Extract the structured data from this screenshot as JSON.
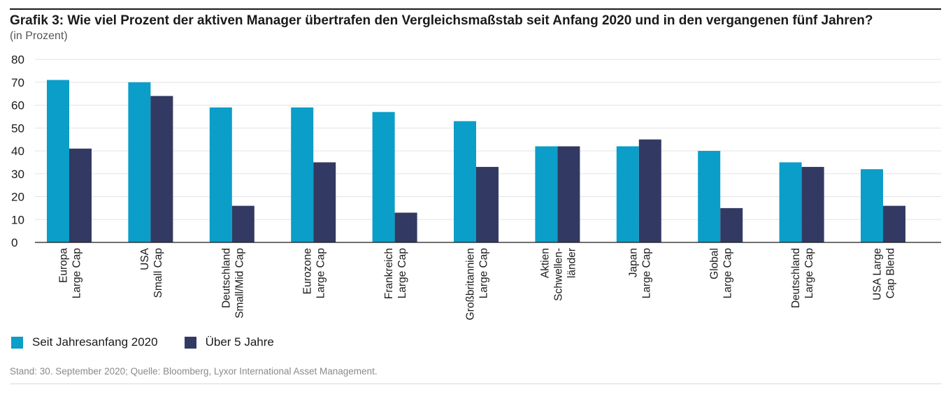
{
  "title_lead": "Grafik 3:",
  "title_text": "Wie viel Prozent der aktiven Manager übertrafen den Vergleichsmaßstab seit Anfang 2020 und in den vergangenen fünf Jahren?",
  "subtitle": "(in Prozent)",
  "footnote": "Stand: 30. September 2020; Quelle: Bloomberg, Lyxor International Asset Management.",
  "colors": {
    "series1": "#0a9ec8",
    "series2": "#323a63",
    "grid": "#e3e3e3",
    "axis": "#1a1a1a"
  },
  "chart_data": {
    "type": "bar",
    "title": "Wie viel Prozent der aktiven Manager übertrafen den Vergleichsmaßstab seit Anfang 2020 und in den vergangenen fünf Jahren?",
    "ylabel": "(in Prozent)",
    "ylim": [
      0,
      80
    ],
    "yticks": [
      0,
      10,
      20,
      30,
      40,
      50,
      60,
      70,
      80
    ],
    "grid": true,
    "legend_position": "bottom-left",
    "categories": [
      [
        "Europa",
        "Large Cap"
      ],
      [
        "USA",
        "Small Cap"
      ],
      [
        "Deutschland",
        "Small/Mid Cap"
      ],
      [
        "Eurozone",
        "Large Cap"
      ],
      [
        "Frankreich",
        "Large Cap"
      ],
      [
        "Großbritannien",
        "Large Cap"
      ],
      [
        "Aktien",
        "Schwellen-",
        "länder"
      ],
      [
        "Japan",
        "Large Cap"
      ],
      [
        "Global",
        "Large Cap"
      ],
      [
        "Deutschland",
        "Large Cap"
      ],
      [
        "USA Large",
        "Cap Blend"
      ]
    ],
    "series": [
      {
        "name": "Seit Jahresanfang 2020",
        "values": [
          71,
          70,
          59,
          59,
          57,
          53,
          42,
          42,
          40,
          35,
          32
        ]
      },
      {
        "name": "Über 5 Jahre",
        "values": [
          41,
          64,
          16,
          35,
          13,
          33,
          42,
          45,
          15,
          33,
          16
        ]
      }
    ]
  }
}
